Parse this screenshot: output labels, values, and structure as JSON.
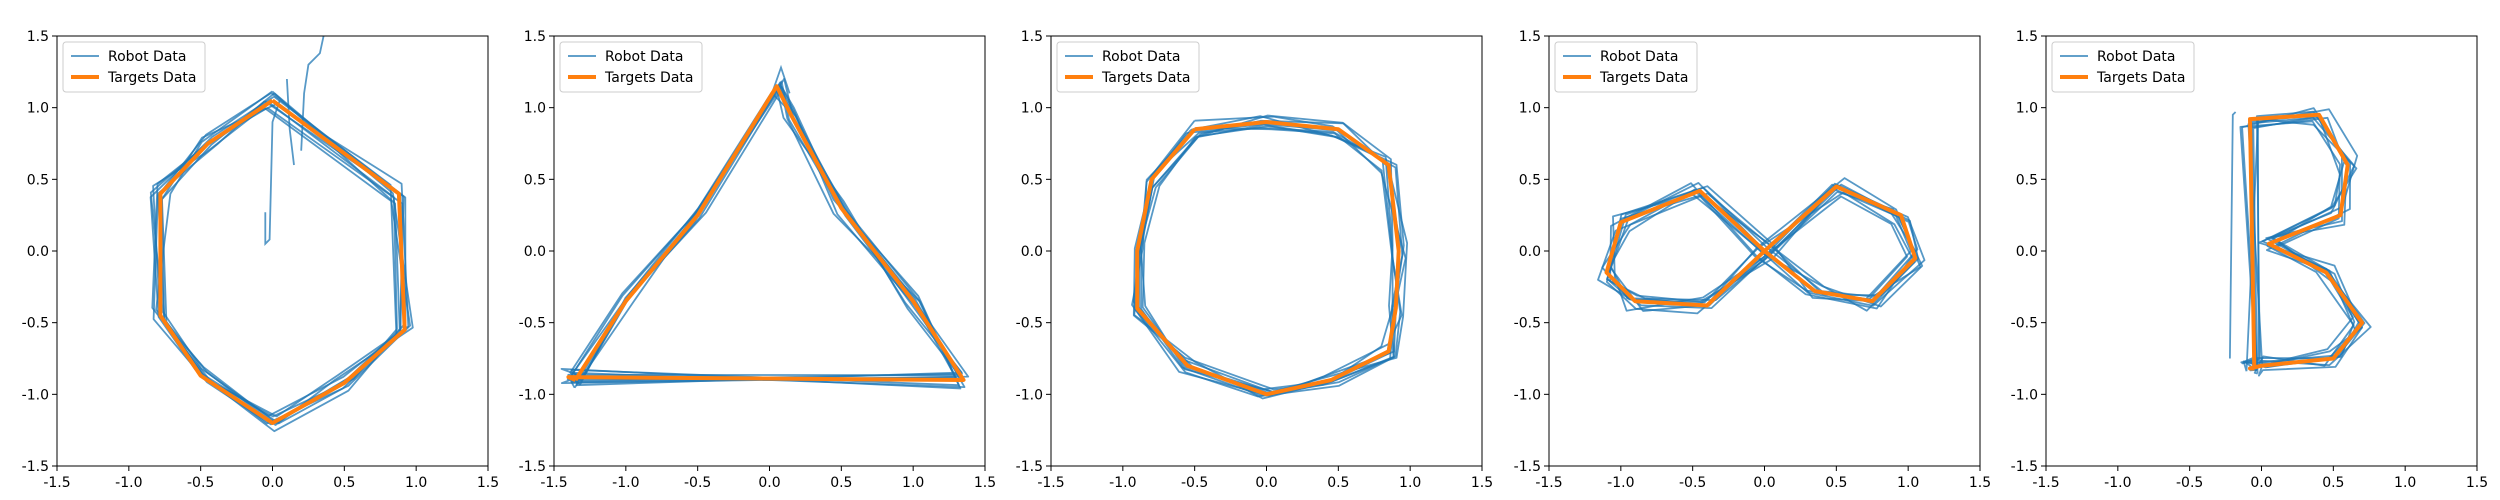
{
  "colors": {
    "robot": "#1f77b4",
    "target": "#ff7f0e"
  },
  "legend": {
    "robot_label": "Robot Data",
    "target_label": "Targets Data",
    "placement": "upper-left"
  },
  "chart_data": [
    {
      "type": "line",
      "shape": "hexagon",
      "xlim": [
        -1.5,
        1.5
      ],
      "ylim": [
        -1.5,
        1.5
      ],
      "xticks": [
        "-1.5",
        "-1.0",
        "-0.5",
        "0.0",
        "0.5",
        "1.0",
        "1.5"
      ],
      "yticks": [
        "-1.5",
        "-1.0",
        "-0.5",
        "0.0",
        "0.5",
        "1.0",
        "1.5"
      ],
      "series": [
        {
          "name": "Targets Data",
          "x": [
            0.0,
            0.88,
            0.92,
            0.5,
            0.0,
            -0.5,
            -0.78,
            -0.78,
            -0.45,
            0.0
          ],
          "y": [
            1.05,
            0.4,
            -0.55,
            -0.92,
            -1.2,
            -0.87,
            -0.45,
            0.4,
            0.75,
            1.05
          ]
        },
        {
          "name": "Robot Data",
          "jitter": 0.07,
          "loops": 9,
          "x": [
            0.0,
            0.88,
            0.92,
            0.5,
            0.0,
            -0.5,
            -0.78,
            -0.78,
            -0.45,
            0.0
          ],
          "y": [
            1.05,
            0.4,
            -0.55,
            -0.92,
            -1.2,
            -0.87,
            -0.45,
            0.4,
            0.75,
            1.05
          ],
          "extra": [
            {
              "x": [
                -0.05,
                -0.05,
                -0.02,
                0.0,
                0.05
              ],
              "y": [
                0.27,
                0.05,
                0.08,
                0.9,
                1.05
              ]
            },
            {
              "x": [
                0.2,
                0.22,
                0.25,
                0.33,
                0.36
              ],
              "y": [
                0.7,
                1.1,
                1.3,
                1.38,
                1.52
              ]
            },
            {
              "x": [
                0.1,
                0.12,
                0.15
              ],
              "y": [
                1.2,
                0.85,
                0.6
              ]
            }
          ]
        }
      ]
    },
    {
      "type": "line",
      "shape": "triangle",
      "xlim": [
        -1.5,
        1.5
      ],
      "ylim": [
        -1.5,
        1.5
      ],
      "xticks": [
        "-1.5",
        "-1.0",
        "-0.5",
        "0.0",
        "0.5",
        "1.0",
        "1.5"
      ],
      "yticks": [
        "-1.5",
        "-1.0",
        "-0.5",
        "0.0",
        "0.5",
        "1.0",
        "1.5"
      ],
      "series": [
        {
          "name": "Targets Data",
          "x": [
            -1.35,
            -1.0,
            -0.5,
            0.05,
            0.15,
            0.5,
            1.0,
            1.35,
            -1.4,
            -1.35
          ],
          "y": [
            -0.9,
            -0.35,
            0.25,
            1.15,
            0.95,
            0.3,
            -0.35,
            -0.9,
            -0.88,
            -0.9
          ]
        },
        {
          "name": "Robot Data",
          "jitter": 0.06,
          "loops": 9,
          "x": [
            -1.35,
            -1.0,
            -0.5,
            0.05,
            0.15,
            0.5,
            1.0,
            1.35,
            -1.4,
            -1.35
          ],
          "y": [
            -0.9,
            -0.35,
            0.25,
            1.15,
            0.95,
            0.3,
            -0.35,
            -0.9,
            -0.88,
            -0.9
          ],
          "extra": [
            {
              "x": [
                0.0,
                0.08,
                0.14
              ],
              "y": [
                1.05,
                1.28,
                1.1
              ]
            }
          ]
        }
      ]
    },
    {
      "type": "line",
      "shape": "rounded-square",
      "xlim": [
        -1.5,
        1.5
      ],
      "ylim": [
        -1.5,
        1.5
      ],
      "xticks": [
        "-1.5",
        "-1.0",
        "-0.5",
        "0.0",
        "0.5",
        "1.0",
        "1.5"
      ],
      "yticks": [
        "-1.5",
        "-1.0",
        "-0.5",
        "0.0",
        "0.5",
        "1.0",
        "1.5"
      ],
      "series": [
        {
          "name": "Targets Data",
          "x": [
            -0.5,
            0.0,
            0.5,
            0.85,
            0.92,
            0.9,
            0.85,
            0.45,
            0.0,
            -0.55,
            -0.9,
            -0.9,
            -0.8,
            -0.5
          ],
          "y": [
            0.85,
            0.9,
            0.85,
            0.6,
            0.0,
            -0.4,
            -0.7,
            -0.9,
            -1.0,
            -0.8,
            -0.4,
            0.0,
            0.5,
            0.85
          ]
        },
        {
          "name": "Robot Data",
          "jitter": 0.06,
          "loops": 9,
          "x": [
            -0.5,
            0.0,
            0.5,
            0.85,
            0.92,
            0.9,
            0.85,
            0.45,
            0.0,
            -0.55,
            -0.9,
            -0.9,
            -0.8,
            -0.5
          ],
          "y": [
            0.85,
            0.9,
            0.85,
            0.6,
            0.0,
            -0.4,
            -0.7,
            -0.9,
            -1.0,
            -0.8,
            -0.4,
            0.0,
            0.5,
            0.85
          ],
          "extra": []
        }
      ]
    },
    {
      "type": "line",
      "shape": "figure-eight",
      "xlim": [
        -1.5,
        1.5
      ],
      "ylim": [
        -1.5,
        1.5
      ],
      "xticks": [
        "-1.5",
        "-1.0",
        "-0.5",
        "0.0",
        "0.5",
        "1.0",
        "1.5"
      ],
      "yticks": [
        "-1.5",
        "-1.0",
        "-0.5",
        "0.0",
        "0.5",
        "1.0",
        "1.5"
      ],
      "series": [
        {
          "name": "Targets Data",
          "x": [
            0.0,
            -0.45,
            -1.0,
            -1.1,
            -0.9,
            -0.4,
            0.0,
            0.5,
            0.95,
            1.05,
            0.75,
            0.35,
            0.0
          ],
          "y": [
            0.0,
            0.42,
            0.2,
            -0.15,
            -0.35,
            -0.38,
            0.0,
            0.45,
            0.25,
            -0.05,
            -0.35,
            -0.28,
            0.0
          ]
        },
        {
          "name": "Robot Data",
          "jitter": 0.07,
          "loops": 9,
          "x": [
            0.0,
            -0.45,
            -1.0,
            -1.1,
            -0.9,
            -0.4,
            0.0,
            0.5,
            0.95,
            1.05,
            0.75,
            0.35,
            0.0
          ],
          "y": [
            0.0,
            0.42,
            0.2,
            -0.15,
            -0.35,
            -0.38,
            0.0,
            0.45,
            0.25,
            -0.05,
            -0.35,
            -0.28,
            0.0
          ],
          "extra": []
        }
      ]
    },
    {
      "type": "line",
      "shape": "letter-B",
      "xlim": [
        -1.5,
        1.5
      ],
      "ylim": [
        -1.5,
        1.5
      ],
      "xticks": [
        "-1.5",
        "-1.0",
        "-0.5",
        "0.0",
        "0.5",
        "1.0",
        "1.5"
      ],
      "yticks": [
        "-1.5",
        "-1.0",
        "-0.5",
        "0.0",
        "0.5",
        "1.0",
        "1.5"
      ],
      "series": [
        {
          "name": "Targets Data",
          "x": [
            -0.05,
            -0.08,
            0.4,
            0.6,
            0.55,
            0.05,
            0.45,
            0.7,
            0.5,
            0.0,
            -0.08,
            -0.05
          ],
          "y": [
            -0.82,
            0.92,
            0.95,
            0.6,
            0.25,
            0.05,
            -0.15,
            -0.5,
            -0.75,
            -0.8,
            -0.82,
            -0.82
          ]
        },
        {
          "name": "Robot Data",
          "jitter": 0.07,
          "loops": 9,
          "x": [
            -0.05,
            -0.08,
            0.4,
            0.6,
            0.55,
            0.05,
            0.45,
            0.7,
            0.5,
            0.0,
            -0.08,
            -0.05
          ],
          "y": [
            -0.82,
            0.92,
            0.95,
            0.6,
            0.25,
            0.05,
            -0.15,
            -0.5,
            -0.75,
            -0.8,
            -0.82,
            -0.82
          ],
          "extra": [
            {
              "x": [
                -0.22,
                -0.2,
                -0.18
              ],
              "y": [
                -0.75,
                0.95,
                0.97
              ]
            }
          ]
        }
      ]
    }
  ]
}
